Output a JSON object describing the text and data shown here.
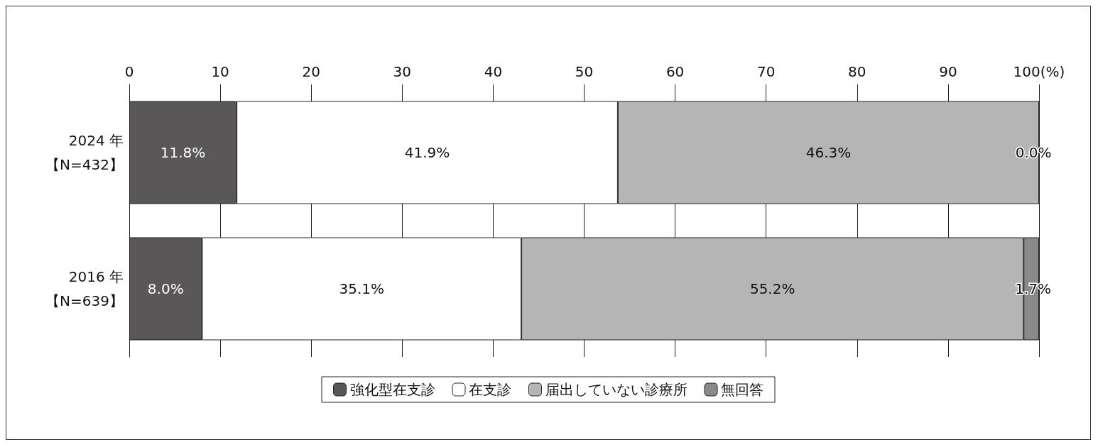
{
  "chart_data": {
    "type": "bar",
    "orientation": "horizontal",
    "stacked": true,
    "categories": [
      "2024 年【N=432】",
      "2016 年【N=639】"
    ],
    "series": [
      {
        "name": "強化型在支診",
        "color": "#595757",
        "values": [
          11.8,
          8.0
        ],
        "value_labels": [
          "11.8%",
          "8.0%"
        ]
      },
      {
        "name": "在支診",
        "color": "#ffffff",
        "values": [
          41.9,
          35.1
        ],
        "value_labels": [
          "41.9%",
          "35.1%"
        ]
      },
      {
        "name": "届出していない診療所",
        "color": "#b5b5b5",
        "values": [
          46.3,
          55.2
        ],
        "value_labels": [
          "46.3%",
          "55.2%"
        ]
      },
      {
        "name": "無回答",
        "color": "#898989",
        "values": [
          0.0,
          1.7
        ],
        "value_labels": [
          "0.0%",
          "1.7%"
        ]
      }
    ],
    "xlim": [
      0,
      100
    ],
    "xticks": [
      0,
      10,
      20,
      30,
      40,
      50,
      60,
      70,
      80,
      90,
      {
        "value": 100,
        "label": "100(%)"
      }
    ],
    "grid": "x",
    "legend": "bottom"
  }
}
